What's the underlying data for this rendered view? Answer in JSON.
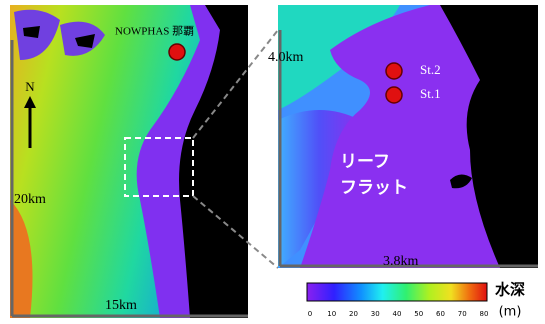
{
  "map": {
    "station_label": "NOWPHAS 那覇",
    "north": "N",
    "left_scale_vertical": "20km",
    "left_scale_horizontal": "15km",
    "right_scale_vertical": "4.0km",
    "right_scale_horizontal": "3.8km",
    "points": [
      "St.2",
      "St.1"
    ],
    "area_label": [
      "リーフ",
      "フラット"
    ],
    "legend": {
      "title": "水深",
      "unit": "(m)",
      "ticks": [
        0,
        10,
        20,
        30,
        40,
        50,
        60,
        70,
        80
      ]
    }
  }
}
